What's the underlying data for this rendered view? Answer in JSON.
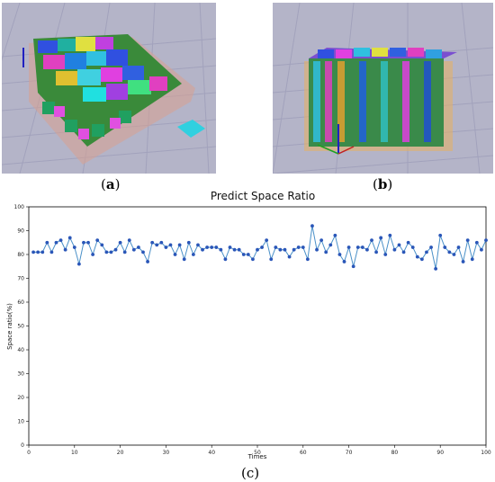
{
  "panels": [
    {
      "id": "a",
      "caption_open": "(",
      "caption_letter": "a",
      "caption_close": ")"
    },
    {
      "id": "b",
      "caption_open": "(",
      "caption_letter": "b",
      "caption_close": ")"
    },
    {
      "id": "c",
      "caption_open": "(",
      "caption_letter": "c",
      "caption_close": ")"
    }
  ],
  "colors": {
    "scene_bg": "#b4b4c8",
    "grid_line": "#9a9ab6",
    "line": "#4a90c8",
    "marker": "#2a56b8"
  },
  "chart_data": {
    "type": "line",
    "title": "Predict Space Ratio",
    "xlabel": "Times",
    "ylabel": "Space ratio(%)",
    "xlim": [
      0,
      100
    ],
    "ylim": [
      0,
      100
    ],
    "xticks": [
      0,
      10,
      20,
      30,
      40,
      50,
      60,
      70,
      80,
      90,
      100
    ],
    "yticks": [
      0,
      10,
      20,
      30,
      40,
      50,
      60,
      70,
      80,
      90,
      100
    ],
    "grid": false,
    "series": [
      {
        "x": [
          1,
          2,
          3,
          4,
          5,
          6,
          7,
          8,
          9,
          10,
          11,
          12,
          13,
          14,
          15,
          16,
          17,
          18,
          19,
          20,
          21,
          22,
          23,
          24,
          25,
          26,
          27,
          28,
          29,
          30,
          31,
          32,
          33,
          34,
          35,
          36,
          37,
          38,
          39,
          40,
          41,
          42,
          43,
          44,
          45,
          46,
          47,
          48,
          49,
          50,
          51,
          52,
          53,
          54,
          55,
          56,
          57,
          58,
          59,
          60,
          61,
          62,
          63,
          64,
          65,
          66,
          67,
          68,
          69,
          70,
          71,
          72,
          73,
          74,
          75,
          76,
          77,
          78,
          79,
          80,
          81,
          82,
          83,
          84,
          85,
          86,
          87,
          88,
          89,
          90,
          91,
          92,
          93,
          94,
          95,
          96,
          97,
          98,
          99,
          100
        ],
        "y": [
          81,
          81,
          81,
          85,
          81,
          85,
          86,
          82,
          87,
          83,
          76,
          85,
          85,
          80,
          86,
          84,
          81,
          81,
          82,
          85,
          81,
          86,
          82,
          83,
          81,
          77,
          85,
          84,
          85,
          83,
          84,
          80,
          84,
          78,
          85,
          80,
          84,
          82,
          83,
          83,
          83,
          82,
          78,
          83,
          82,
          82,
          80,
          80,
          78,
          82,
          83,
          86,
          78,
          83,
          82,
          82,
          79,
          82,
          83,
          83,
          78,
          92,
          82,
          86,
          81,
          84,
          88,
          80,
          77,
          83,
          75,
          83,
          83,
          82,
          86,
          81,
          87,
          80,
          88,
          82,
          84,
          81,
          85,
          83,
          79,
          78,
          81,
          83,
          74,
          88,
          83,
          81,
          80,
          83,
          77,
          86,
          78,
          85,
          82,
          86
        ]
      }
    ]
  }
}
